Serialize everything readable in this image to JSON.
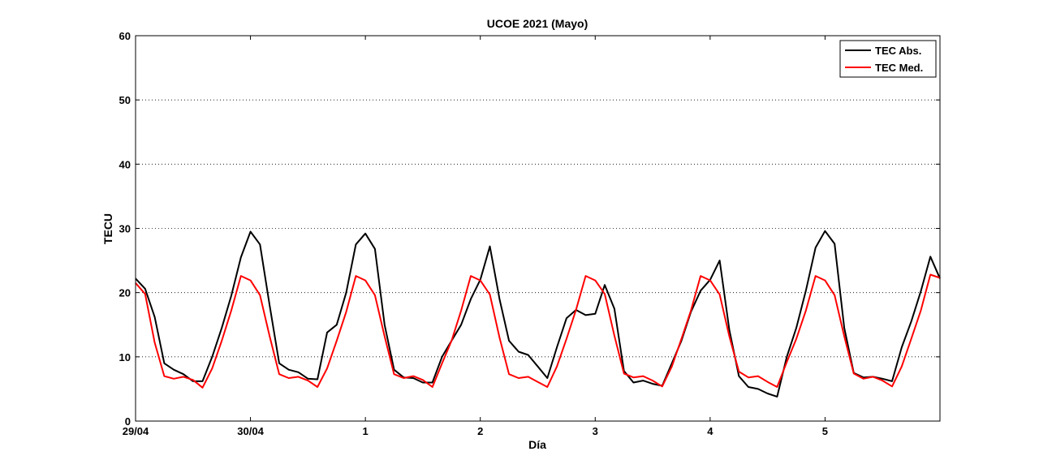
{
  "chart_data": {
    "type": "line",
    "title": "UCOE 2021 (Mayo)",
    "xlabel": "Día",
    "ylabel": "TECU",
    "ylim": [
      0,
      60
    ],
    "xlim": [
      0,
      7
    ],
    "yticks": [
      0,
      10,
      20,
      30,
      40,
      50,
      60
    ],
    "xticks": [
      {
        "value": 0,
        "label": "29/04"
      },
      {
        "value": 1,
        "label": "30/04"
      },
      {
        "value": 2,
        "label": "1"
      },
      {
        "value": 3,
        "label": "2"
      },
      {
        "value": 4,
        "label": "3"
      },
      {
        "value": 5,
        "label": "4"
      },
      {
        "value": 6,
        "label": "5"
      }
    ],
    "grid": "horizontal-dotted",
    "legend_position": "top-right",
    "series": [
      {
        "name": "TEC Abs.",
        "color": "#000000",
        "points": [
          [
            0,
            22.2
          ],
          [
            0.083,
            20.6
          ],
          [
            0.167,
            16.2
          ],
          [
            0.25,
            9
          ],
          [
            0.333,
            8
          ],
          [
            0.417,
            7.3
          ],
          [
            0.5,
            6.2
          ],
          [
            0.583,
            6.2
          ],
          [
            0.667,
            10
          ],
          [
            0.75,
            14.5
          ],
          [
            0.833,
            19.5
          ],
          [
            0.917,
            25.5
          ],
          [
            1,
            29.5
          ],
          [
            1.083,
            27.5
          ],
          [
            1.167,
            18
          ],
          [
            1.25,
            9
          ],
          [
            1.333,
            8
          ],
          [
            1.417,
            7.6
          ],
          [
            1.5,
            6.6
          ],
          [
            1.583,
            6.5
          ],
          [
            1.667,
            13.8
          ],
          [
            1.75,
            15
          ],
          [
            1.833,
            20
          ],
          [
            1.917,
            27.5
          ],
          [
            2,
            29.2
          ],
          [
            2.083,
            26.8
          ],
          [
            2.167,
            15
          ],
          [
            2.25,
            8
          ],
          [
            2.333,
            6.8
          ],
          [
            2.417,
            6.7
          ],
          [
            2.5,
            6
          ],
          [
            2.583,
            6
          ],
          [
            2.667,
            10
          ],
          [
            2.75,
            12.5
          ],
          [
            2.833,
            15
          ],
          [
            2.917,
            19
          ],
          [
            3,
            22
          ],
          [
            3.083,
            27.2
          ],
          [
            3.167,
            19
          ],
          [
            3.25,
            12.5
          ],
          [
            3.333,
            10.8
          ],
          [
            3.417,
            10.3
          ],
          [
            3.5,
            8.5
          ],
          [
            3.583,
            6.7
          ],
          [
            3.667,
            11.5
          ],
          [
            3.75,
            16
          ],
          [
            3.833,
            17.3
          ],
          [
            3.917,
            16.5
          ],
          [
            4,
            16.7
          ],
          [
            4.083,
            21.2
          ],
          [
            4.167,
            17.5
          ],
          [
            4.25,
            7.8
          ],
          [
            4.333,
            6
          ],
          [
            4.417,
            6.3
          ],
          [
            4.5,
            5.8
          ],
          [
            4.583,
            5.5
          ],
          [
            4.667,
            9
          ],
          [
            4.75,
            12.5
          ],
          [
            4.833,
            17
          ],
          [
            4.917,
            20.3
          ],
          [
            5,
            22
          ],
          [
            5.083,
            25
          ],
          [
            5.167,
            14.2
          ],
          [
            5.25,
            7
          ],
          [
            5.333,
            5.3
          ],
          [
            5.417,
            5
          ],
          [
            5.5,
            4.3
          ],
          [
            5.583,
            3.8
          ],
          [
            5.667,
            10
          ],
          [
            5.75,
            14.5
          ],
          [
            5.833,
            20.3
          ],
          [
            5.917,
            27
          ],
          [
            6,
            29.6
          ],
          [
            6.083,
            27.6
          ],
          [
            6.167,
            14.5
          ],
          [
            6.25,
            7.5
          ],
          [
            6.333,
            6.8
          ],
          [
            6.417,
            6.9
          ],
          [
            6.5,
            6.6
          ],
          [
            6.583,
            6.2
          ],
          [
            6.667,
            11.5
          ],
          [
            6.75,
            15.5
          ],
          [
            6.833,
            20.2
          ],
          [
            6.917,
            25.6
          ],
          [
            7,
            22.2
          ]
        ]
      },
      {
        "name": "TEC Med.",
        "color": "#ff0000",
        "points": [
          [
            0,
            21.5
          ],
          [
            0.083,
            19.8
          ],
          [
            0.167,
            12.2
          ],
          [
            0.25,
            7
          ],
          [
            0.333,
            6.6
          ],
          [
            0.417,
            6.9
          ],
          [
            0.5,
            6.4
          ],
          [
            0.583,
            5.2
          ],
          [
            0.667,
            8.2
          ],
          [
            0.75,
            12.5
          ],
          [
            0.833,
            17.2
          ],
          [
            0.917,
            22.6
          ],
          [
            1,
            21.9
          ],
          [
            1.083,
            19.6
          ],
          [
            1.167,
            13.2
          ],
          [
            1.25,
            7.3
          ],
          [
            1.333,
            6.7
          ],
          [
            1.417,
            6.9
          ],
          [
            1.5,
            6.3
          ],
          [
            1.583,
            5.3
          ],
          [
            1.667,
            8.2
          ],
          [
            1.75,
            12.5
          ],
          [
            1.833,
            17
          ],
          [
            1.917,
            22.6
          ],
          [
            2,
            21.9
          ],
          [
            2.083,
            19.6
          ],
          [
            2.167,
            13.2
          ],
          [
            2.25,
            7.3
          ],
          [
            2.333,
            6.7
          ],
          [
            2.417,
            7
          ],
          [
            2.5,
            6.4
          ],
          [
            2.583,
            5.3
          ],
          [
            2.667,
            9
          ],
          [
            2.75,
            12.5
          ],
          [
            2.833,
            17.2
          ],
          [
            2.917,
            22.6
          ],
          [
            3,
            21.9
          ],
          [
            3.083,
            19.7
          ],
          [
            3.167,
            13
          ],
          [
            3.25,
            7.3
          ],
          [
            3.333,
            6.7
          ],
          [
            3.417,
            6.9
          ],
          [
            3.5,
            6.1
          ],
          [
            3.583,
            5.3
          ],
          [
            3.667,
            8.5
          ],
          [
            3.75,
            12.8
          ],
          [
            3.833,
            17.3
          ],
          [
            3.917,
            22.6
          ],
          [
            4,
            21.9
          ],
          [
            4.083,
            19.8
          ],
          [
            4.167,
            13.3
          ],
          [
            4.25,
            7.4
          ],
          [
            4.333,
            6.8
          ],
          [
            4.417,
            7
          ],
          [
            4.5,
            6.3
          ],
          [
            4.583,
            5.4
          ],
          [
            4.667,
            8.5
          ],
          [
            4.75,
            12.8
          ],
          [
            4.833,
            17.2
          ],
          [
            4.917,
            22.6
          ],
          [
            5,
            21.9
          ],
          [
            5.083,
            19.7
          ],
          [
            5.167,
            13.2
          ],
          [
            5.25,
            7.7
          ],
          [
            5.333,
            6.8
          ],
          [
            5.417,
            7
          ],
          [
            5.5,
            6.1
          ],
          [
            5.583,
            5.3
          ],
          [
            5.667,
            9.2
          ],
          [
            5.75,
            12.8
          ],
          [
            5.833,
            17.2
          ],
          [
            5.917,
            22.6
          ],
          [
            6,
            21.9
          ],
          [
            6.083,
            19.6
          ],
          [
            6.167,
            13.2
          ],
          [
            6.25,
            7.4
          ],
          [
            6.333,
            6.6
          ],
          [
            6.417,
            6.9
          ],
          [
            6.5,
            6.3
          ],
          [
            6.583,
            5.4
          ],
          [
            6.667,
            8.5
          ],
          [
            6.75,
            12.8
          ],
          [
            6.833,
            17.2
          ],
          [
            6.917,
            22.8
          ],
          [
            7,
            22.3
          ]
        ]
      }
    ]
  }
}
